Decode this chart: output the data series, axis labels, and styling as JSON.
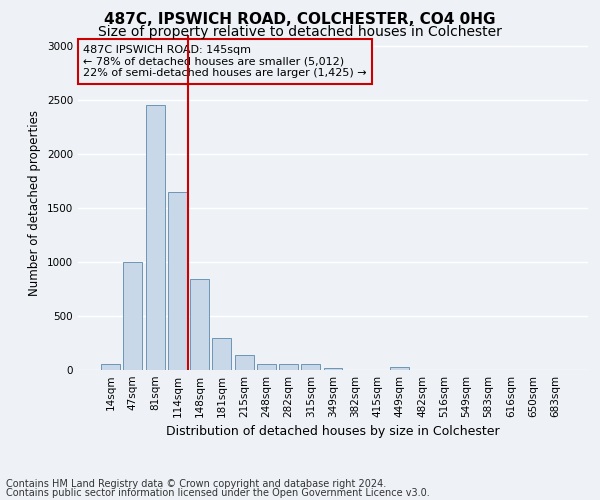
{
  "title1": "487C, IPSWICH ROAD, COLCHESTER, CO4 0HG",
  "title2": "Size of property relative to detached houses in Colchester",
  "xlabel": "Distribution of detached houses by size in Colchester",
  "ylabel": "Number of detached properties",
  "categories": [
    "14sqm",
    "47sqm",
    "81sqm",
    "114sqm",
    "148sqm",
    "181sqm",
    "215sqm",
    "248sqm",
    "282sqm",
    "315sqm",
    "349sqm",
    "382sqm",
    "415sqm",
    "449sqm",
    "482sqm",
    "516sqm",
    "549sqm",
    "583sqm",
    "616sqm",
    "650sqm",
    "683sqm"
  ],
  "values": [
    60,
    1000,
    2450,
    1650,
    840,
    300,
    140,
    55,
    55,
    55,
    20,
    0,
    0,
    30,
    0,
    0,
    0,
    0,
    0,
    0,
    0
  ],
  "bar_color": "#c8d8e8",
  "bar_edge_color": "#5a8aaa",
  "vline_x": 3.5,
  "vline_color": "#cc0000",
  "annotation_text": "487C IPSWICH ROAD: 145sqm\n← 78% of detached houses are smaller (5,012)\n22% of semi-detached houses are larger (1,425) →",
  "annotation_box_color": "#cc0000",
  "ylim": [
    0,
    3100
  ],
  "yticks": [
    0,
    500,
    1000,
    1500,
    2000,
    2500,
    3000
  ],
  "footnote1": "Contains HM Land Registry data © Crown copyright and database right 2024.",
  "footnote2": "Contains public sector information licensed under the Open Government Licence v3.0.",
  "bg_color": "#eef2f7",
  "grid_color": "#ffffff",
  "title1_fontsize": 11,
  "title2_fontsize": 10,
  "xlabel_fontsize": 9,
  "ylabel_fontsize": 8.5,
  "tick_fontsize": 7.5,
  "annot_fontsize": 8,
  "footnote_fontsize": 7
}
